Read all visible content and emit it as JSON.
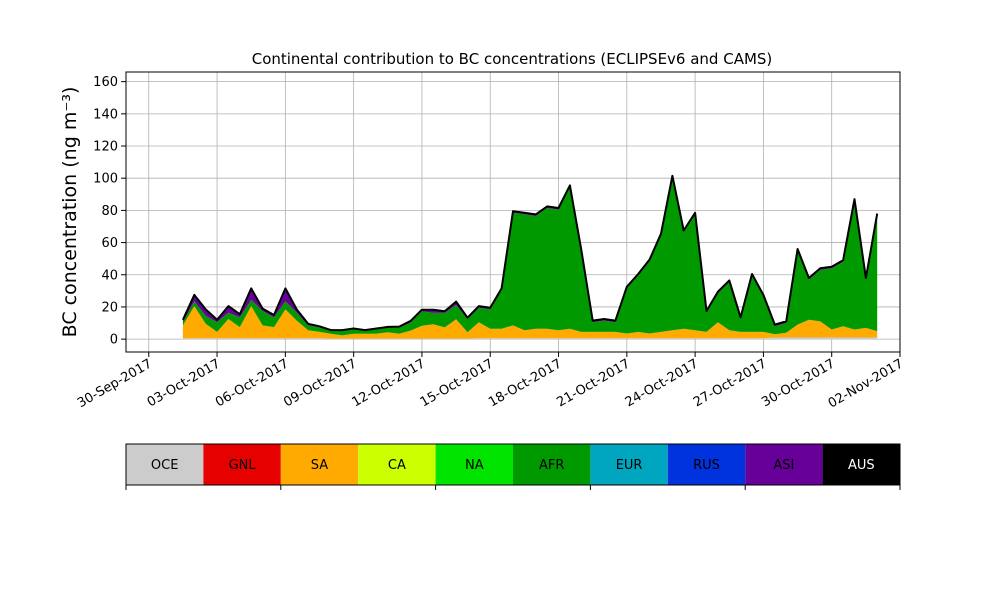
{
  "chart_data": {
    "type": "area",
    "stacked": true,
    "title": "Continental contribution to BC concentrations (ECLIPSEv6 and CAMS)",
    "ylabel": "BC concentration (ng m⁻³)",
    "xlabel": "",
    "x_range": [
      "2017-09-29",
      "2017-11-02"
    ],
    "x_ticks": [
      "2017-09-30",
      "2017-10-03",
      "2017-10-06",
      "2017-10-09",
      "2017-10-12",
      "2017-10-15",
      "2017-10-18",
      "2017-10-21",
      "2017-10-24",
      "2017-10-27",
      "2017-10-30",
      "2017-11-02"
    ],
    "x_tick_labels": [
      "30-Sep-2017",
      "03-Oct-2017",
      "06-Oct-2017",
      "09-Oct-2017",
      "12-Oct-2017",
      "15-Oct-2017",
      "18-Oct-2017",
      "21-Oct-2017",
      "24-Oct-2017",
      "27-Oct-2017",
      "30-Oct-2017",
      "02-Nov-2017"
    ],
    "ylim": [
      -8,
      166
    ],
    "y_ticks": [
      0,
      20,
      40,
      60,
      80,
      100,
      120,
      140,
      160
    ],
    "grid": true,
    "total_line_color": "#000000",
    "x": [
      "2017-10-01T12:00",
      "2017-10-02T00:00",
      "2017-10-02T12:00",
      "2017-10-03T00:00",
      "2017-10-03T12:00",
      "2017-10-04T00:00",
      "2017-10-04T12:00",
      "2017-10-05T00:00",
      "2017-10-05T12:00",
      "2017-10-06T00:00",
      "2017-10-06T12:00",
      "2017-10-07T00:00",
      "2017-10-07T12:00",
      "2017-10-08T00:00",
      "2017-10-08T12:00",
      "2017-10-09T00:00",
      "2017-10-09T12:00",
      "2017-10-10T00:00",
      "2017-10-10T12:00",
      "2017-10-11T00:00",
      "2017-10-11T12:00",
      "2017-10-12T00:00",
      "2017-10-12T12:00",
      "2017-10-13T00:00",
      "2017-10-13T12:00",
      "2017-10-14T00:00",
      "2017-10-14T12:00",
      "2017-10-15T00:00",
      "2017-10-15T12:00",
      "2017-10-16T00:00",
      "2017-10-16T12:00",
      "2017-10-17T00:00",
      "2017-10-17T12:00",
      "2017-10-18T00:00",
      "2017-10-18T12:00",
      "2017-10-19T00:00",
      "2017-10-19T12:00",
      "2017-10-20T00:00",
      "2017-10-20T12:00",
      "2017-10-21T00:00",
      "2017-10-21T12:00",
      "2017-10-22T00:00",
      "2017-10-22T12:00",
      "2017-10-23T00:00",
      "2017-10-23T12:00",
      "2017-10-24T00:00",
      "2017-10-24T12:00",
      "2017-10-25T00:00",
      "2017-10-25T12:00",
      "2017-10-26T00:00",
      "2017-10-26T12:00",
      "2017-10-27T00:00",
      "2017-10-27T12:00",
      "2017-10-28T00:00",
      "2017-10-28T12:00",
      "2017-10-29T00:00",
      "2017-10-29T12:00",
      "2017-10-30T00:00",
      "2017-10-30T12:00",
      "2017-10-31T00:00",
      "2017-10-31T12:00",
      "2017-11-01T00:00"
    ],
    "series": [
      {
        "name": "OCE",
        "color": "#cccccc",
        "values": [
          0.5,
          0.5,
          0.5,
          0.5,
          0.5,
          0.5,
          0.5,
          0.5,
          0.5,
          0.5,
          0.5,
          0.5,
          0.5,
          0.3,
          0.3,
          0.3,
          0.3,
          0.3,
          0.3,
          0.3,
          0.3,
          0.3,
          0.3,
          0.3,
          0.3,
          0.3,
          0.5,
          0.5,
          0.5,
          0.5,
          0.5,
          0.5,
          0.5,
          0.5,
          0.5,
          0.5,
          0.5,
          0.5,
          0.5,
          0.5,
          0.5,
          0.5,
          0.5,
          0.5,
          0.5,
          0.5,
          0.5,
          0.5,
          0.5,
          0.5,
          0.5,
          0.5,
          1.0,
          1.0,
          1.0,
          1.0,
          1.0,
          1.0,
          1.0,
          1.0,
          1.0,
          1.0
        ]
      },
      {
        "name": "GNL",
        "color": "#e60000",
        "values": [
          0,
          0,
          0,
          0,
          0,
          0,
          0,
          0,
          0,
          0,
          0,
          0,
          0,
          0,
          0,
          0,
          0,
          0,
          0,
          0,
          0,
          0,
          0,
          0,
          0,
          0,
          0,
          0,
          0,
          0,
          0,
          0,
          0,
          0,
          0,
          0,
          0,
          0,
          0,
          0,
          0,
          0,
          0,
          0,
          0,
          0,
          0,
          0,
          0,
          0,
          0,
          0,
          0,
          0,
          0,
          0,
          0,
          0,
          0,
          0,
          0,
          0
        ]
      },
      {
        "name": "SA",
        "color": "#ffaa00",
        "values": [
          8,
          20,
          9,
          4,
          12,
          7,
          20,
          8,
          7,
          18,
          11,
          5,
          4,
          3,
          2,
          3,
          3,
          3,
          4,
          3,
          5,
          8,
          9,
          7,
          12,
          4,
          10,
          6,
          6,
          8,
          5,
          6,
          6,
          5,
          6,
          4,
          4,
          4,
          4,
          3,
          4,
          3,
          4,
          5,
          6,
          5,
          4,
          10,
          5,
          4,
          4,
          4,
          2,
          3,
          8,
          11,
          10,
          5,
          7,
          5,
          6,
          4
        ]
      },
      {
        "name": "CA",
        "color": "#ccff00",
        "values": [
          0,
          0,
          0,
          0,
          0,
          0,
          0,
          0,
          0,
          0,
          0,
          0,
          0,
          0,
          0,
          0,
          0,
          0,
          0,
          0,
          0,
          0,
          0,
          0,
          0,
          0,
          0,
          0,
          0,
          0,
          0,
          0,
          0,
          0,
          0,
          0,
          0,
          0,
          0,
          0,
          0,
          0,
          0,
          0,
          0,
          0,
          0,
          0,
          0,
          0,
          0,
          0,
          0,
          0,
          0,
          0,
          0,
          0,
          0,
          0,
          0,
          0
        ]
      },
      {
        "name": "NA",
        "color": "#00e400",
        "values": [
          0,
          0,
          0,
          0,
          0,
          0,
          0,
          0,
          0,
          0,
          0,
          0,
          0,
          0,
          0,
          0,
          0,
          0,
          0,
          0,
          0,
          0,
          0,
          0,
          0,
          0,
          0,
          0,
          0,
          0,
          0,
          0,
          0,
          0,
          0,
          0,
          0,
          0,
          0,
          0,
          0,
          0,
          0,
          0,
          0,
          0,
          0,
          0,
          0,
          0,
          0,
          0,
          0,
          0,
          0,
          0,
          0,
          0,
          0,
          0,
          0,
          0
        ]
      },
      {
        "name": "AFR",
        "color": "#009900",
        "values": [
          2,
          3,
          5,
          6,
          4,
          6,
          4,
          9,
          6,
          5,
          5,
          3,
          3,
          2,
          3,
          3,
          2,
          3,
          3,
          4,
          5,
          9,
          7,
          9,
          9,
          8,
          9,
          12,
          24,
          70,
          72,
          70,
          75,
          75,
          88,
          50,
          6,
          7,
          6,
          28,
          35,
          45,
          60,
          95,
          60,
          72,
          12,
          18,
          30,
          8,
          35,
          22,
          5,
          6,
          46,
          25,
          32,
          38,
          40,
          80,
          30,
          72
        ]
      },
      {
        "name": "EUR",
        "color": "#00a5bf",
        "values": [
          0,
          0,
          0,
          0,
          0,
          0,
          0,
          0,
          0,
          0,
          0,
          0,
          0,
          0,
          0,
          0,
          0,
          0,
          0,
          0,
          0,
          0,
          0,
          0,
          0,
          0,
          0,
          0,
          0,
          0,
          0,
          0,
          0,
          0,
          0,
          0,
          0,
          0,
          0,
          0,
          0,
          0,
          0,
          0,
          0,
          0,
          0,
          0,
          0,
          0,
          0,
          0,
          0,
          0,
          0,
          0,
          0,
          0,
          0,
          0,
          0,
          0
        ]
      },
      {
        "name": "RUS",
        "color": "#0033dd",
        "values": [
          0,
          0,
          0,
          0,
          0,
          0,
          0,
          0,
          0,
          0,
          0,
          0,
          0,
          0,
          0,
          0,
          0,
          0,
          0,
          0,
          0,
          0,
          0,
          0,
          0,
          0,
          0,
          0,
          0,
          0,
          0,
          0,
          0,
          0,
          0,
          0,
          0,
          0,
          0,
          0,
          0,
          0,
          0,
          0,
          0,
          0,
          0,
          0,
          0,
          0,
          0,
          0,
          0,
          0,
          0,
          0,
          0,
          0,
          0,
          0,
          0,
          0
        ]
      },
      {
        "name": "ASI",
        "color": "#660099",
        "values": [
          1.5,
          4,
          4,
          1.5,
          4,
          2,
          7,
          1.5,
          1.5,
          8,
          2,
          1,
          0.5,
          0.3,
          0.3,
          0.3,
          0.3,
          0.3,
          0.3,
          0.5,
          1,
          1,
          2,
          1,
          2,
          1,
          1,
          1,
          1,
          1,
          1,
          1,
          1,
          1,
          1,
          1,
          1,
          1,
          1,
          1,
          1,
          1,
          1,
          1,
          1,
          1,
          1,
          1,
          1,
          1,
          1,
          1,
          1,
          1,
          1,
          1,
          1,
          1,
          1,
          1,
          1,
          1
        ]
      },
      {
        "name": "AUS",
        "color": "#000000",
        "values": [
          0,
          0,
          0,
          0,
          0,
          0,
          0,
          0,
          0,
          0,
          0,
          0,
          0,
          0,
          0,
          0,
          0,
          0,
          0,
          0,
          0,
          0,
          0,
          0,
          0,
          0,
          0,
          0,
          0,
          0,
          0,
          0,
          0,
          0,
          0,
          0,
          0,
          0,
          0,
          0,
          0,
          0,
          0,
          0,
          0,
          0,
          0,
          0,
          0,
          0,
          0,
          0,
          0,
          0,
          0,
          0,
          0,
          0,
          0,
          0,
          0,
          0
        ]
      }
    ]
  },
  "colorbar": {
    "labels": [
      "OCE",
      "GNL",
      "SA",
      "CA",
      "NA",
      "AFR",
      "EUR",
      "RUS",
      "ASI",
      "AUS"
    ],
    "colors": [
      "#cccccc",
      "#e60000",
      "#ffaa00",
      "#ccff00",
      "#00e400",
      "#009900",
      "#00a5bf",
      "#0033dd",
      "#660099",
      "#000000"
    ]
  }
}
